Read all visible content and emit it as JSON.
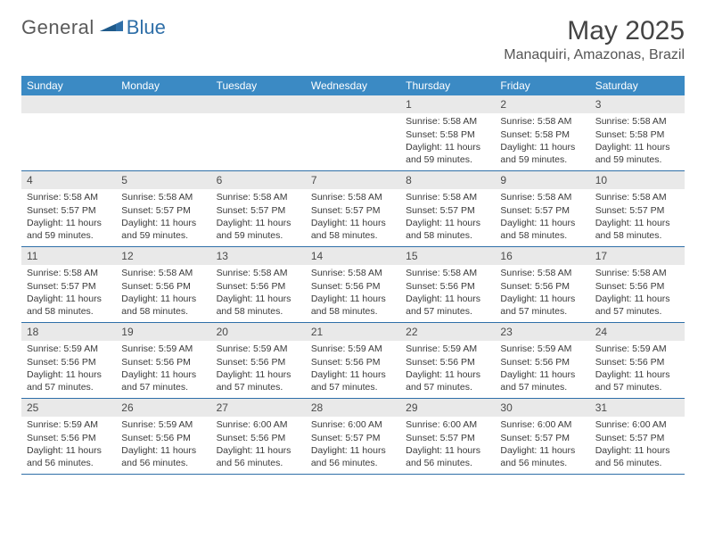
{
  "brand": {
    "part1": "General",
    "part2": "Blue"
  },
  "title": "May 2025",
  "location": "Manaquiri, Amazonas, Brazil",
  "colors": {
    "header_bg": "#3b8ac4",
    "header_text": "#ffffff",
    "daynum_bg": "#e9e9e9",
    "rule": "#2f6fa8",
    "brand_gray": "#5a5a5a",
    "brand_blue": "#2f6fa8"
  },
  "weekdays": [
    "Sunday",
    "Monday",
    "Tuesday",
    "Wednesday",
    "Thursday",
    "Friday",
    "Saturday"
  ],
  "weeks": [
    [
      {
        "n": "",
        "sunrise": "",
        "sunset": "",
        "daylight": ""
      },
      {
        "n": "",
        "sunrise": "",
        "sunset": "",
        "daylight": ""
      },
      {
        "n": "",
        "sunrise": "",
        "sunset": "",
        "daylight": ""
      },
      {
        "n": "",
        "sunrise": "",
        "sunset": "",
        "daylight": ""
      },
      {
        "n": "1",
        "sunrise": "Sunrise: 5:58 AM",
        "sunset": "Sunset: 5:58 PM",
        "daylight": "Daylight: 11 hours and 59 minutes."
      },
      {
        "n": "2",
        "sunrise": "Sunrise: 5:58 AM",
        "sunset": "Sunset: 5:58 PM",
        "daylight": "Daylight: 11 hours and 59 minutes."
      },
      {
        "n": "3",
        "sunrise": "Sunrise: 5:58 AM",
        "sunset": "Sunset: 5:58 PM",
        "daylight": "Daylight: 11 hours and 59 minutes."
      }
    ],
    [
      {
        "n": "4",
        "sunrise": "Sunrise: 5:58 AM",
        "sunset": "Sunset: 5:57 PM",
        "daylight": "Daylight: 11 hours and 59 minutes."
      },
      {
        "n": "5",
        "sunrise": "Sunrise: 5:58 AM",
        "sunset": "Sunset: 5:57 PM",
        "daylight": "Daylight: 11 hours and 59 minutes."
      },
      {
        "n": "6",
        "sunrise": "Sunrise: 5:58 AM",
        "sunset": "Sunset: 5:57 PM",
        "daylight": "Daylight: 11 hours and 59 minutes."
      },
      {
        "n": "7",
        "sunrise": "Sunrise: 5:58 AM",
        "sunset": "Sunset: 5:57 PM",
        "daylight": "Daylight: 11 hours and 58 minutes."
      },
      {
        "n": "8",
        "sunrise": "Sunrise: 5:58 AM",
        "sunset": "Sunset: 5:57 PM",
        "daylight": "Daylight: 11 hours and 58 minutes."
      },
      {
        "n": "9",
        "sunrise": "Sunrise: 5:58 AM",
        "sunset": "Sunset: 5:57 PM",
        "daylight": "Daylight: 11 hours and 58 minutes."
      },
      {
        "n": "10",
        "sunrise": "Sunrise: 5:58 AM",
        "sunset": "Sunset: 5:57 PM",
        "daylight": "Daylight: 11 hours and 58 minutes."
      }
    ],
    [
      {
        "n": "11",
        "sunrise": "Sunrise: 5:58 AM",
        "sunset": "Sunset: 5:57 PM",
        "daylight": "Daylight: 11 hours and 58 minutes."
      },
      {
        "n": "12",
        "sunrise": "Sunrise: 5:58 AM",
        "sunset": "Sunset: 5:56 PM",
        "daylight": "Daylight: 11 hours and 58 minutes."
      },
      {
        "n": "13",
        "sunrise": "Sunrise: 5:58 AM",
        "sunset": "Sunset: 5:56 PM",
        "daylight": "Daylight: 11 hours and 58 minutes."
      },
      {
        "n": "14",
        "sunrise": "Sunrise: 5:58 AM",
        "sunset": "Sunset: 5:56 PM",
        "daylight": "Daylight: 11 hours and 58 minutes."
      },
      {
        "n": "15",
        "sunrise": "Sunrise: 5:58 AM",
        "sunset": "Sunset: 5:56 PM",
        "daylight": "Daylight: 11 hours and 57 minutes."
      },
      {
        "n": "16",
        "sunrise": "Sunrise: 5:58 AM",
        "sunset": "Sunset: 5:56 PM",
        "daylight": "Daylight: 11 hours and 57 minutes."
      },
      {
        "n": "17",
        "sunrise": "Sunrise: 5:58 AM",
        "sunset": "Sunset: 5:56 PM",
        "daylight": "Daylight: 11 hours and 57 minutes."
      }
    ],
    [
      {
        "n": "18",
        "sunrise": "Sunrise: 5:59 AM",
        "sunset": "Sunset: 5:56 PM",
        "daylight": "Daylight: 11 hours and 57 minutes."
      },
      {
        "n": "19",
        "sunrise": "Sunrise: 5:59 AM",
        "sunset": "Sunset: 5:56 PM",
        "daylight": "Daylight: 11 hours and 57 minutes."
      },
      {
        "n": "20",
        "sunrise": "Sunrise: 5:59 AM",
        "sunset": "Sunset: 5:56 PM",
        "daylight": "Daylight: 11 hours and 57 minutes."
      },
      {
        "n": "21",
        "sunrise": "Sunrise: 5:59 AM",
        "sunset": "Sunset: 5:56 PM",
        "daylight": "Daylight: 11 hours and 57 minutes."
      },
      {
        "n": "22",
        "sunrise": "Sunrise: 5:59 AM",
        "sunset": "Sunset: 5:56 PM",
        "daylight": "Daylight: 11 hours and 57 minutes."
      },
      {
        "n": "23",
        "sunrise": "Sunrise: 5:59 AM",
        "sunset": "Sunset: 5:56 PM",
        "daylight": "Daylight: 11 hours and 57 minutes."
      },
      {
        "n": "24",
        "sunrise": "Sunrise: 5:59 AM",
        "sunset": "Sunset: 5:56 PM",
        "daylight": "Daylight: 11 hours and 57 minutes."
      }
    ],
    [
      {
        "n": "25",
        "sunrise": "Sunrise: 5:59 AM",
        "sunset": "Sunset: 5:56 PM",
        "daylight": "Daylight: 11 hours and 56 minutes."
      },
      {
        "n": "26",
        "sunrise": "Sunrise: 5:59 AM",
        "sunset": "Sunset: 5:56 PM",
        "daylight": "Daylight: 11 hours and 56 minutes."
      },
      {
        "n": "27",
        "sunrise": "Sunrise: 6:00 AM",
        "sunset": "Sunset: 5:56 PM",
        "daylight": "Daylight: 11 hours and 56 minutes."
      },
      {
        "n": "28",
        "sunrise": "Sunrise: 6:00 AM",
        "sunset": "Sunset: 5:57 PM",
        "daylight": "Daylight: 11 hours and 56 minutes."
      },
      {
        "n": "29",
        "sunrise": "Sunrise: 6:00 AM",
        "sunset": "Sunset: 5:57 PM",
        "daylight": "Daylight: 11 hours and 56 minutes."
      },
      {
        "n": "30",
        "sunrise": "Sunrise: 6:00 AM",
        "sunset": "Sunset: 5:57 PM",
        "daylight": "Daylight: 11 hours and 56 minutes."
      },
      {
        "n": "31",
        "sunrise": "Sunrise: 6:00 AM",
        "sunset": "Sunset: 5:57 PM",
        "daylight": "Daylight: 11 hours and 56 minutes."
      }
    ]
  ]
}
